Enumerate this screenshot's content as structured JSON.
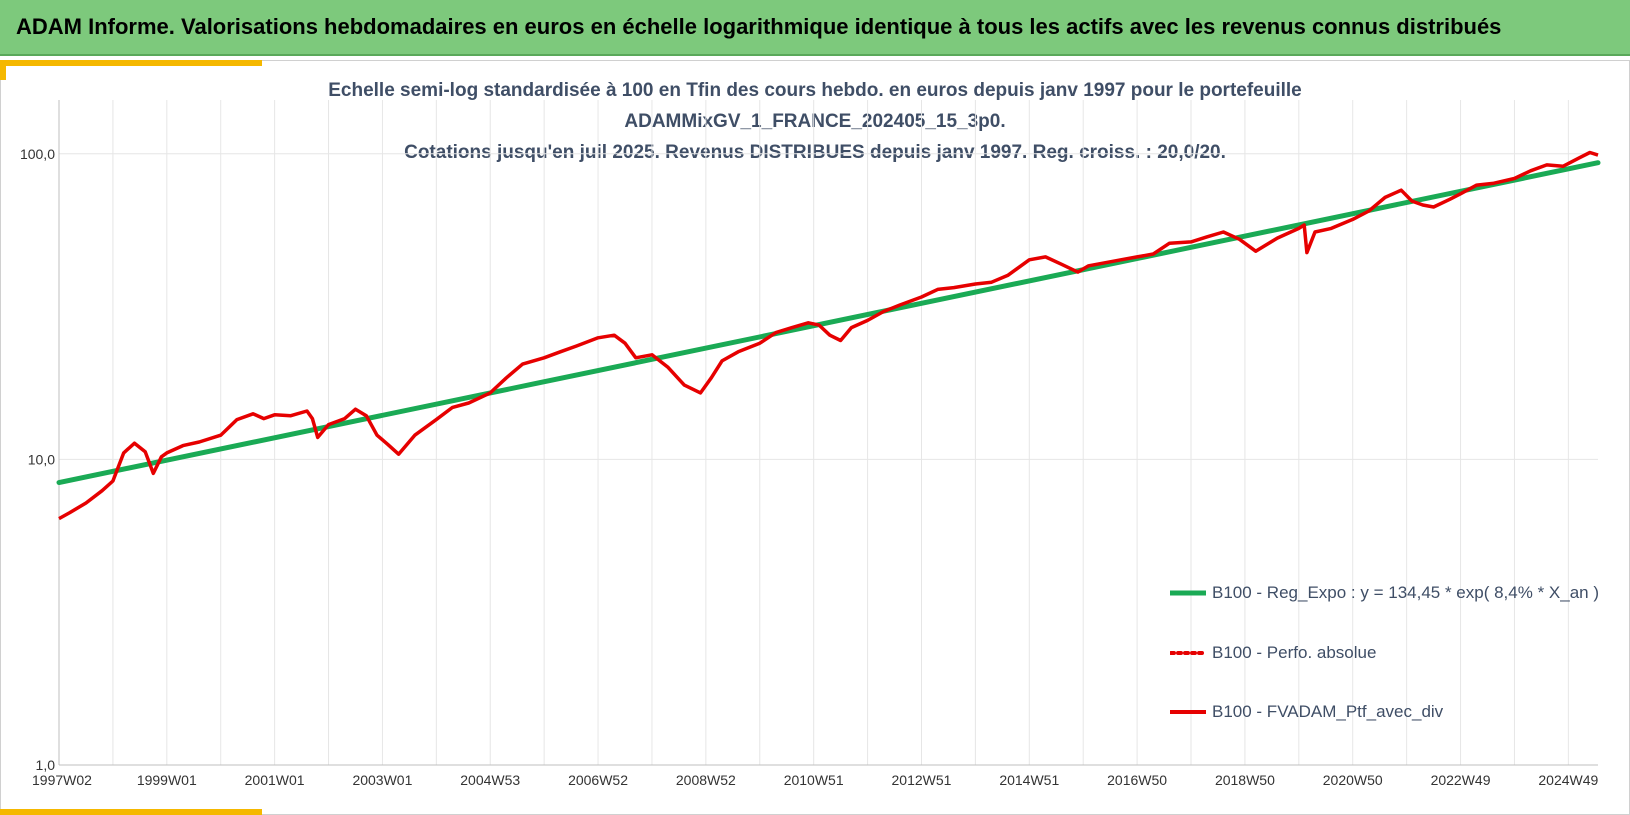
{
  "banner": {
    "title": "ADAM Informe. Valorisations hebdomadaires en euros en échelle logarithmique identique à tous les actifs avec les revenus connus distribués"
  },
  "colors": {
    "banner_bg": "#7dc97c",
    "accent": "#f5b800",
    "title_text": "#3f4e66",
    "regression_line": "#1aaa55",
    "portfolio_line": "#e60000",
    "perf_absolue_line": "#e60000",
    "grid": "#e6e6e6"
  },
  "chart_data": {
    "type": "line",
    "title_lines": [
      "Echelle semi-log standardisée  à 100 en Tfin des cours hebdo.  en euros depuis janv 1997 pour le portefeuille",
      "ADAMMixGV_1_FRANCE_202405_15_3p0.",
      "Cotations jusqu'en juil 2025. Revenus DISTRIBUES depuis janv 1997. Reg. croiss. : 20,0/20."
    ],
    "xlabel": "",
    "ylabel": "",
    "y_scale": "log",
    "ylim": [
      1,
      150
    ],
    "y_ticks": [
      1,
      10,
      100
    ],
    "y_tick_labels": [
      "1,0",
      "10,0",
      "100,0"
    ],
    "x_range": [
      1997.0,
      2025.55
    ],
    "x_tick_labels": [
      "1997W02",
      "1999W01",
      "2001W01",
      "2003W01",
      "2004W53",
      "2006W52",
      "2008W52",
      "2010W51",
      "2012W51",
      "2014W51",
      "2016W50",
      "2018W50",
      "2020W50",
      "2022W49",
      "2024W49"
    ],
    "x_tick_positions": [
      1997.02,
      1999.0,
      2001.0,
      2003.0,
      2005.0,
      2007.0,
      2009.0,
      2011.0,
      2013.0,
      2015.0,
      2017.0,
      2019.0,
      2021.0,
      2023.0,
      2025.0
    ],
    "grid": "vertical-and-horizontal",
    "legend_position": "bottom-right",
    "series": [
      {
        "name": "B100 - Reg_Expo : y = 134,45 * exp( 8,4% *  X_an )",
        "style": "solid-thick",
        "x": [
          1997.0,
          2025.55
        ],
        "y": [
          8.4,
          93.5
        ]
      },
      {
        "name": "B100 - Perfo. absolue",
        "style": "dotted",
        "x": [],
        "y": []
      },
      {
        "name": "B100 - FVADAM_Ptf_avec_div",
        "style": "solid",
        "x": [
          1997.0,
          1997.2,
          1997.5,
          1997.8,
          1998.0,
          1998.2,
          1998.4,
          1998.6,
          1998.75,
          1998.9,
          1999.0,
          1999.3,
          1999.6,
          2000.0,
          2000.3,
          2000.6,
          2000.8,
          2001.0,
          2001.3,
          2001.6,
          2001.7,
          2001.8,
          2002.0,
          2002.3,
          2002.5,
          2002.7,
          2002.9,
          2003.1,
          2003.3,
          2003.6,
          2004.0,
          2004.3,
          2004.6,
          2005.0,
          2005.3,
          2005.6,
          2006.0,
          2006.3,
          2006.6,
          2007.0,
          2007.3,
          2007.5,
          2007.7,
          2008.0,
          2008.3,
          2008.6,
          2008.9,
          2009.1,
          2009.3,
          2009.6,
          2010.0,
          2010.3,
          2010.6,
          2010.9,
          2011.1,
          2011.3,
          2011.5,
          2011.7,
          2012.0,
          2012.3,
          2012.6,
          2013.0,
          2013.3,
          2013.6,
          2014.0,
          2014.3,
          2014.6,
          2015.0,
          2015.3,
          2015.6,
          2015.9,
          2016.1,
          2016.4,
          2016.7,
          2017.0,
          2017.3,
          2017.6,
          2018.0,
          2018.3,
          2018.6,
          2018.9,
          2019.2,
          2019.6,
          2020.0,
          2020.1,
          2020.15,
          2020.3,
          2020.6,
          2021.0,
          2021.3,
          2021.6,
          2021.9,
          2022.1,
          2022.3,
          2022.5,
          2022.8,
          2023.0,
          2023.3,
          2023.6,
          2024.0,
          2024.3,
          2024.6,
          2024.9,
          2025.2,
          2025.4,
          2025.55
        ],
        "y": [
          6.4,
          6.7,
          7.2,
          7.9,
          8.5,
          10.5,
          11.3,
          10.6,
          9.0,
          10.2,
          10.5,
          11.1,
          11.4,
          12.0,
          13.5,
          14.1,
          13.6,
          14.0,
          13.9,
          14.4,
          13.6,
          11.8,
          13.0,
          13.6,
          14.6,
          13.9,
          12.0,
          11.2,
          10.4,
          12.0,
          13.5,
          14.8,
          15.3,
          16.5,
          18.5,
          20.5,
          21.5,
          22.5,
          23.5,
          25.0,
          25.5,
          24.0,
          21.5,
          22.0,
          20.0,
          17.5,
          16.5,
          18.5,
          21.0,
          22.5,
          24.0,
          26.0,
          27.0,
          28.0,
          27.5,
          25.5,
          24.5,
          27.0,
          28.5,
          30.5,
          32.0,
          34.0,
          36.0,
          36.5,
          37.5,
          38.0,
          40.0,
          45.0,
          46.0,
          43.5,
          41.0,
          43.0,
          44.0,
          45.0,
          46.0,
          47.0,
          51.0,
          51.5,
          53.5,
          55.5,
          52.5,
          48.0,
          53.0,
          57.0,
          58.5,
          47.5,
          55.5,
          57.0,
          61.0,
          65.0,
          72.0,
          76.0,
          70.0,
          68.0,
          67.0,
          71.0,
          74.0,
          79.0,
          80.0,
          83.0,
          88.0,
          92.0,
          91.0,
          97.0,
          101.0,
          99.0
        ]
      }
    ]
  }
}
